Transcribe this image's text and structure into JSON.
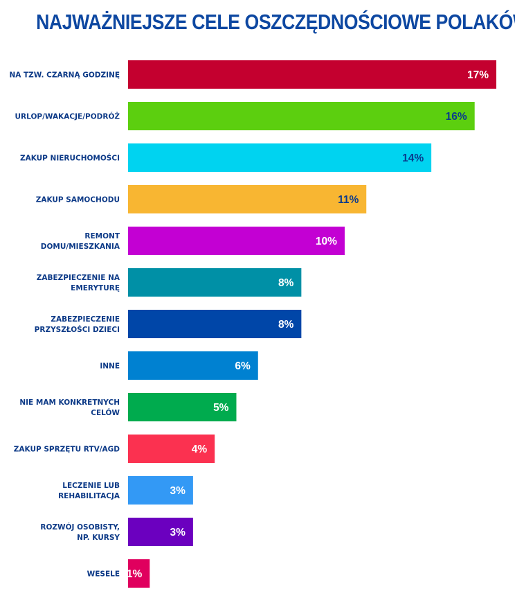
{
  "chart_data": {
    "type": "bar",
    "orientation": "horizontal",
    "title": "NAJWAŻNIEJSZE CELE OSZCZĘDNOŚCIOWE POLAKÓW",
    "unit": "%",
    "categories": [
      [
        "NA TZW. CZARNĄ GODZINĘ"
      ],
      [
        "URLOP/WAKACJE/PODRÓŻ"
      ],
      [
        "ZAKUP NIERUCHOMOŚCI"
      ],
      [
        "ZAKUP SAMOCHODU"
      ],
      [
        "REMONT",
        "DOMU/MIESZKANIA"
      ],
      [
        "ZABEZPIECZENIE NA",
        "EMERYTURĘ"
      ],
      [
        "ZABEZPIECZENIE",
        "PRZYSZŁOŚCI DZIECI"
      ],
      [
        "INNE"
      ],
      [
        "NIE MAM KONKRETNYCH",
        "CELÓW"
      ],
      [
        "ZAKUP SPRZĘTU RTV/AGD"
      ],
      [
        "LECZENIE LUB",
        "REHABILITACJA"
      ],
      [
        "ROZWÓJ OSOBISTY,",
        "NP. KURSY"
      ],
      [
        "WESELE"
      ]
    ],
    "values": [
      17,
      16,
      14,
      11,
      10,
      8,
      8,
      6,
      5,
      4,
      3,
      3,
      1
    ],
    "value_labels": [
      "17%",
      "16%",
      "14%",
      "11%",
      "10%",
      "8%",
      "8%",
      "6%",
      "5%",
      "4%",
      "3%",
      "3%",
      "1%"
    ],
    "bar_colors": [
      "#c4002f",
      "#5ccf0f",
      "#00d3f0",
      "#f8b632",
      "#c300d3",
      "#0090a6",
      "#0046a8",
      "#0081d1",
      "#00ab4e",
      "#fb3150",
      "#3399f5",
      "#6b00bf",
      "#e0005e"
    ],
    "label_colors": [
      "#ffffff",
      "#0a3a8c",
      "#0a3a8c",
      "#0a3a8c",
      "#ffffff",
      "#ffffff",
      "#ffffff",
      "#ffffff",
      "#ffffff",
      "#ffffff",
      "#ffffff",
      "#ffffff",
      "#ffffff"
    ],
    "xlim": [
      0,
      17
    ],
    "grid": false,
    "legend": "none"
  },
  "colors": {
    "title": "#0d47a1",
    "category_label": "#0d3a87"
  }
}
